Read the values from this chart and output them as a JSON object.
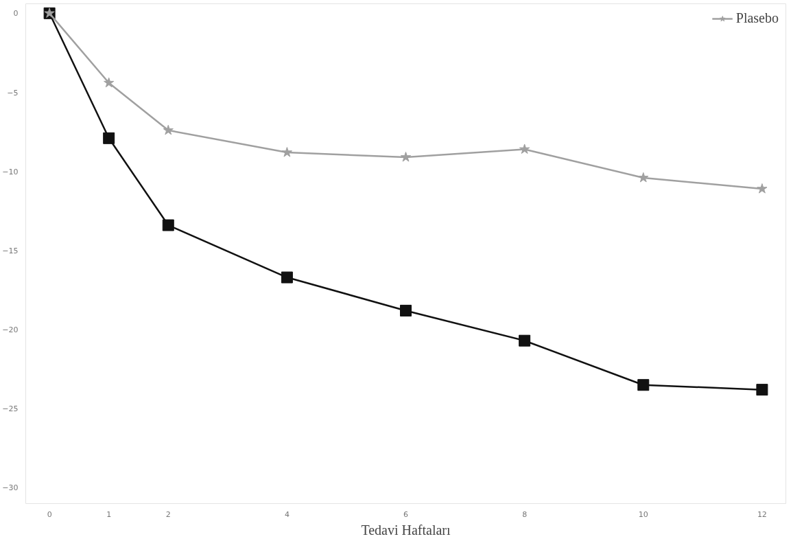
{
  "chart_data": {
    "type": "line",
    "xlabel": "Tedavi Haftaları",
    "x": [
      0,
      1,
      2,
      4,
      6,
      8,
      10,
      12
    ],
    "xlim": [
      -0.4,
      12.4
    ],
    "xticks": [
      0,
      1,
      2,
      4,
      6,
      8,
      10,
      12
    ],
    "ylim": [
      -31,
      0.6
    ],
    "yticks": [
      0,
      -5,
      -10,
      -15,
      -20,
      -25,
      -30
    ],
    "grid": false,
    "legend": "top right",
    "series": [
      {
        "color": "#111111",
        "marker": "square",
        "values": [
          0,
          -7.9,
          -13.4,
          -16.7,
          -18.8,
          -20.7,
          -23.5,
          -23.8
        ]
      },
      {
        "name": "Plasebo",
        "color": "#a0a0a0",
        "marker": "star",
        "values": [
          0,
          -4.4,
          -7.4,
          -8.8,
          -9.1,
          -8.6,
          -10.4,
          -11.1
        ]
      }
    ]
  }
}
